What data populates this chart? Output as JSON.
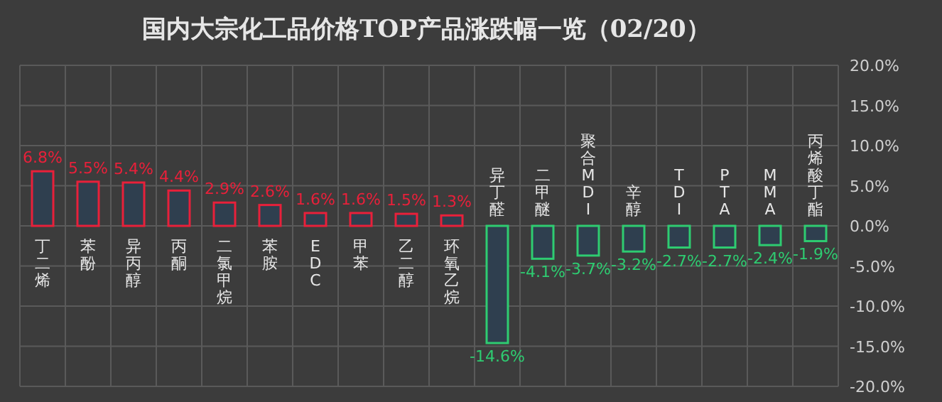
{
  "chart_data": {
    "type": "bar",
    "title": "国内大宗化工品价格TOP产品涨跌幅一览（02/20）",
    "categories": [
      "丁二烯",
      "苯酚",
      "异丙醇",
      "丙酮",
      "二氯甲烷",
      "苯胺",
      "EDC",
      "甲苯",
      "乙二醇",
      "环氧乙烷",
      "异丁醛",
      "二甲醚",
      "聚合MDI",
      "辛醇",
      "TDI",
      "PTA",
      "MMA",
      "丙烯酸丁酯"
    ],
    "values": [
      6.8,
      5.5,
      5.4,
      4.4,
      2.9,
      2.6,
      1.6,
      1.6,
      1.5,
      1.3,
      -14.6,
      -4.1,
      -3.7,
      -3.2,
      -2.7,
      -2.7,
      -2.4,
      -1.9
    ],
    "value_labels": [
      "6.8%",
      "5.5%",
      "5.4%",
      "4.4%",
      "2.9%",
      "2.6%",
      "1.6%",
      "1.6%",
      "1.5%",
      "1.3%",
      "-14.6%",
      "-4.1%",
      "-3.7%",
      "-3.2%",
      "-2.7%",
      "-2.7%",
      "-2.4%",
      "-1.9%"
    ],
    "colors": [
      "#e8203a",
      "#e8203a",
      "#e8203a",
      "#e8203a",
      "#e8203a",
      "#e8203a",
      "#e8203a",
      "#e8203a",
      "#e8203a",
      "#e8203a",
      "#2ecc71",
      "#2ecc71",
      "#2ecc71",
      "#2ecc71",
      "#2ecc71",
      "#2ecc71",
      "#2ecc71",
      "#2ecc71"
    ],
    "ylim": [
      -20,
      20
    ],
    "yticks": [
      {
        "value": 20,
        "label": "20.0%"
      },
      {
        "value": 15,
        "label": "15.0%"
      },
      {
        "value": 10,
        "label": "10.0%"
      },
      {
        "value": 5,
        "label": "5.0%"
      },
      {
        "value": 0,
        "label": "0.0%"
      },
      {
        "value": -5,
        "label": "-5.0%"
      },
      {
        "value": -10,
        "label": "-10.0%"
      },
      {
        "value": -15,
        "label": "-15.0%"
      },
      {
        "value": -20,
        "label": "-20.0%"
      }
    ],
    "grid": true
  }
}
